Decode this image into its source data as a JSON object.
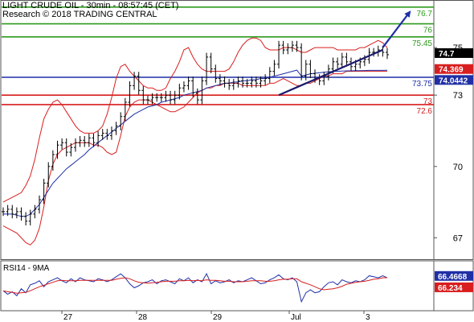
{
  "header": {
    "title": "LIGHT CRUDE OIL - 30min - 08:57:45 (CET)",
    "copyright": "Research © 2018 TRADING CENTRAL"
  },
  "chart_data": [
    {
      "type": "line",
      "title": "LIGHT CRUDE OIL - 30min",
      "ylim": [
        66.1,
        77.0
      ],
      "y_ticks": [
        67,
        70,
        73,
        75
      ],
      "x_ticks": [
        "27",
        "28",
        "29",
        "Jul",
        "3"
      ],
      "levels": [
        {
          "label": "76.7",
          "value": 76.7,
          "color": "#2e9a1e"
        },
        {
          "label": "76",
          "value": 76.0,
          "color": "#2e9a1e"
        },
        {
          "label": "75.45",
          "value": 75.45,
          "color": "#2e9a1e"
        },
        {
          "label": "73.75",
          "value": 73.75,
          "color": "#1f2fa6"
        },
        {
          "label": "73",
          "value": 73.0,
          "color": "#d81e1e"
        },
        {
          "label": "72.6",
          "value": 72.6,
          "color": "#d81e1e"
        }
      ],
      "price_tags": [
        {
          "label": "74.7",
          "value": 74.7,
          "color": "#000000"
        },
        {
          "label": "74.369",
          "value": 74.369,
          "color": "#d81e1e"
        },
        {
          "label": "74.0442",
          "value": 74.0442,
          "color": "#1f2fa6"
        }
      ],
      "series": [
        {
          "name": "price",
          "color": "#000000",
          "values": [
            68.1,
            68.2,
            68.0,
            68.1,
            67.9,
            67.7,
            68.0,
            68.2,
            68.6,
            69.3,
            70.0,
            70.5,
            70.9,
            71.0,
            70.6,
            70.8,
            71.0,
            71.1,
            71.0,
            71.2,
            71.0,
            71.3,
            71.4,
            71.3,
            71.5,
            71.7,
            72.1,
            72.7,
            73.4,
            73.8,
            73.2,
            72.8,
            72.8,
            72.9,
            72.9,
            72.9,
            73.0,
            72.8,
            73.0,
            73.3,
            73.4,
            73.6,
            73.1,
            72.8,
            73.6,
            74.6,
            74.1,
            73.7,
            73.6,
            73.5,
            73.4,
            73.5,
            73.6,
            73.5,
            73.5,
            73.6,
            73.5,
            73.6,
            73.7,
            74.0,
            74.3,
            75.1,
            74.9,
            75.0,
            75.1,
            75.0,
            73.8,
            74.3,
            73.9,
            73.7,
            73.6,
            73.8,
            74.1,
            74.4,
            74.3,
            74.6,
            74.4,
            74.2,
            74.3,
            74.4,
            74.5,
            74.8,
            74.8,
            74.9,
            74.8,
            74.7
          ]
        },
        {
          "name": "moving average",
          "color": "#1f2fa6",
          "values": [
            68.0,
            68.0,
            68.0,
            67.95,
            67.9,
            67.9,
            68.0,
            68.2,
            68.4,
            68.7,
            69.0,
            69.3,
            69.5,
            69.7,
            69.9,
            70.05,
            70.2,
            70.35,
            70.5,
            70.7,
            70.85,
            71.0,
            71.15,
            71.3,
            71.45,
            71.6,
            71.75,
            71.9,
            72.05,
            72.2,
            72.3,
            72.4,
            72.5,
            72.55,
            72.6,
            72.7,
            72.75,
            72.8,
            72.85,
            72.9,
            73.0,
            73.05,
            73.1,
            73.15,
            73.2,
            73.3,
            73.35,
            73.4,
            73.45,
            73.5,
            73.5,
            73.55,
            73.55,
            73.6,
            73.6,
            73.65,
            73.65,
            73.7,
            73.7,
            73.75,
            73.8,
            73.85,
            73.9,
            73.95,
            74.0,
            74.05,
            73.8,
            73.85,
            73.9,
            73.92,
            73.94,
            73.96,
            73.98,
            74.0,
            74.0,
            74.01,
            74.02,
            74.02,
            74.03,
            74.03,
            74.035,
            74.04,
            74.04,
            74.042,
            74.043,
            74.0442
          ]
        },
        {
          "name": "upper band",
          "color": "#d81e1e",
          "values": [
            68.5,
            68.6,
            68.7,
            68.8,
            68.9,
            69.2,
            69.6,
            70.3,
            71.2,
            72.0,
            72.4,
            72.7,
            72.8,
            72.6,
            72.3,
            72.0,
            71.7,
            71.5,
            71.4,
            71.4,
            71.4,
            71.5,
            71.7,
            72.2,
            72.9,
            73.7,
            74.2,
            74.3,
            74.0,
            73.8,
            73.6,
            73.4,
            73.3,
            73.3,
            73.2,
            73.2,
            73.3,
            73.7,
            74.0,
            74.4,
            74.9,
            75.0,
            74.6,
            74.3,
            74.1,
            74.0,
            74.0,
            74.0,
            74.0,
            74.0,
            74.1,
            74.4,
            74.8,
            75.1,
            75.3,
            75.4,
            75.4,
            75.3,
            75.0,
            74.9,
            74.9,
            74.9,
            75.0,
            75.0,
            75.0,
            74.9,
            74.8,
            74.8,
            74.9,
            75.0,
            75.0,
            75.0,
            75.0,
            75.0,
            74.9,
            74.9,
            74.9,
            74.9,
            74.9,
            75.0,
            75.0,
            75.1,
            75.2,
            75.3,
            75.2,
            75.0
          ]
        },
        {
          "name": "lower band",
          "color": "#d81e1e",
          "values": [
            67.5,
            67.4,
            67.3,
            67.2,
            67.0,
            66.8,
            66.7,
            66.9,
            67.4,
            68.3,
            69.4,
            70.1,
            70.5,
            70.7,
            70.8,
            70.9,
            71.0,
            71.0,
            71.0,
            71.0,
            70.9,
            70.9,
            70.8,
            70.6,
            70.5,
            70.6,
            71.3,
            72.1,
            72.5,
            72.7,
            72.8,
            72.8,
            72.8,
            72.7,
            72.6,
            72.5,
            72.4,
            72.3,
            72.3,
            72.4,
            72.5,
            72.7,
            72.9,
            73.1,
            73.2,
            73.3,
            73.3,
            73.4,
            73.4,
            73.5,
            73.5,
            73.5,
            73.5,
            73.4,
            73.4,
            73.4,
            73.4,
            73.4,
            73.4,
            73.5,
            73.5,
            73.6,
            73.7,
            73.6,
            73.5,
            73.4,
            73.4,
            73.5,
            73.5,
            73.6,
            73.7,
            73.8,
            73.8,
            73.9,
            73.9,
            73.9,
            74.0,
            74.0,
            74.0,
            74.0,
            74.0,
            74.0,
            74.0,
            74.0,
            74.0,
            74.0
          ]
        }
      ],
      "trendlines": [
        {
          "name": "bullish trendline",
          "color": "#1a1a6e",
          "from": {
            "i": 61,
            "v": 73.0
          },
          "to": {
            "i": 84,
            "v": 74.9
          }
        },
        {
          "name": "projection arrow",
          "color": "#1f2fa6",
          "from": {
            "i": 84,
            "v": 75.0
          },
          "to": {
            "i": 90,
            "v": 76.5
          }
        }
      ]
    },
    {
      "type": "line",
      "title": "RSI14 - 9MA",
      "ylim": [
        0,
        100
      ],
      "price_tags": [
        {
          "label": "66.4668",
          "value": 66.4668,
          "color": "#1f2fa6"
        },
        {
          "label": "66.234",
          "value": 66.234,
          "color": "#d81e1e"
        }
      ],
      "series": [
        {
          "name": "RSI14",
          "color": "#1f2fa6",
          "values": [
            40,
            33,
            38,
            30,
            44,
            36,
            52,
            55,
            60,
            48,
            58,
            62,
            66,
            60,
            56,
            64,
            58,
            66,
            62,
            60,
            58,
            64,
            62,
            58,
            62,
            68,
            74,
            66,
            54,
            46,
            50,
            56,
            58,
            62,
            54,
            60,
            62,
            58,
            54,
            64,
            60,
            66,
            56,
            62,
            58,
            74,
            54,
            60,
            56,
            58,
            62,
            56,
            60,
            58,
            62,
            66,
            60,
            54,
            56,
            62,
            66,
            72,
            64,
            62,
            66,
            58,
            18,
            36,
            42,
            36,
            38,
            48,
            56,
            58,
            52,
            62,
            58,
            56,
            60,
            58,
            62,
            70,
            68,
            66,
            70,
            66
          ]
        },
        {
          "name": "9MA",
          "color": "#d81e1e",
          "values": [
            40,
            38,
            37,
            35,
            36,
            37,
            40,
            44,
            48,
            51,
            54,
            57,
            60,
            61,
            60,
            60,
            60,
            61,
            61,
            61,
            61,
            61,
            61,
            61,
            61,
            63,
            65,
            66,
            64,
            60,
            57,
            56,
            55,
            56,
            57,
            58,
            59,
            59,
            59,
            60,
            60,
            61,
            60,
            61,
            60,
            62,
            61,
            61,
            60,
            59,
            59,
            58,
            58,
            58,
            59,
            60,
            60,
            60,
            59,
            59,
            60,
            62,
            63,
            63,
            64,
            64,
            58,
            55,
            52,
            48,
            44,
            42,
            43,
            44,
            46,
            49,
            53,
            55,
            57,
            58,
            59,
            61,
            63,
            64,
            66,
            66.234
          ]
        }
      ]
    }
  ]
}
